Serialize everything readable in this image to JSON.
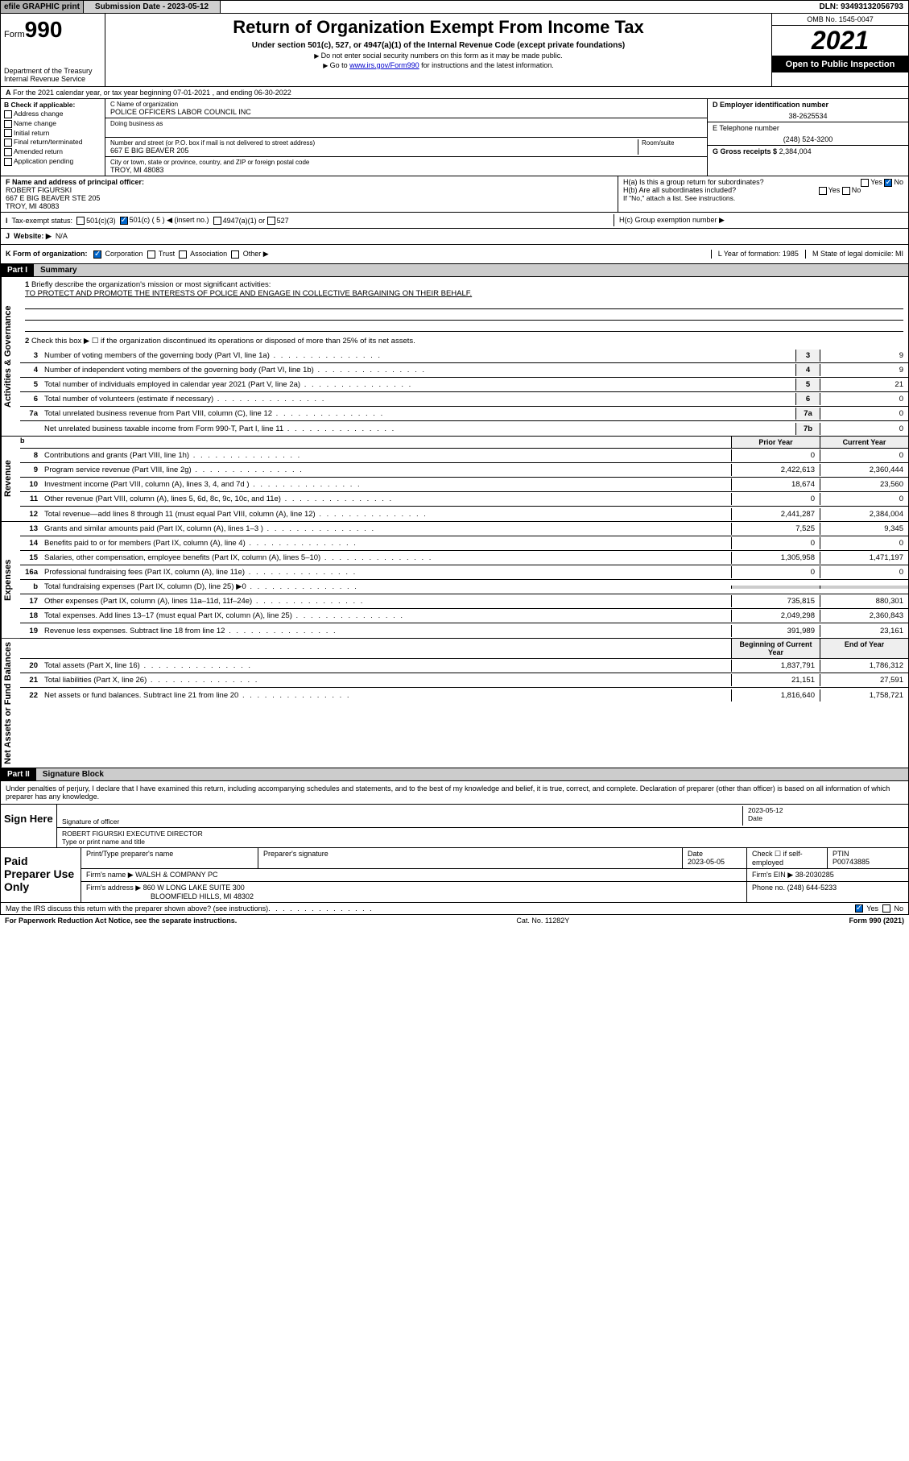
{
  "topbar": {
    "efile": "efile GRAPHIC print",
    "submission_lbl": "Submission Date - 2023-05-12",
    "dln_lbl": "DLN: 93493132056793"
  },
  "header": {
    "form": "Form",
    "form_num": "990",
    "dept": "Department of the Treasury",
    "irs": "Internal Revenue Service",
    "title": "Return of Organization Exempt From Income Tax",
    "subtitle": "Under section 501(c), 527, or 4947(a)(1) of the Internal Revenue Code (except private foundations)",
    "note1": "Do not enter social security numbers on this form as it may be made public.",
    "note2_pre": "Go to ",
    "note2_link": "www.irs.gov/Form990",
    "note2_post": " for instructions and the latest information.",
    "omb": "OMB No. 1545-0047",
    "year": "2021",
    "open": "Open to Public Inspection"
  },
  "rowA": "For the 2021 calendar year, or tax year beginning 07-01-2021   , and ending 06-30-2022",
  "boxB": {
    "title": "B Check if applicable:",
    "opts": [
      "Address change",
      "Name change",
      "Initial return",
      "Final return/terminated",
      "Amended return",
      "Application pending"
    ]
  },
  "boxC": {
    "lbl": "C Name of organization",
    "name": "POLICE OFFICERS LABOR COUNCIL INC",
    "dba_lbl": "Doing business as",
    "addr_lbl": "Number and street (or P.O. box if mail is not delivered to street address)",
    "room_lbl": "Room/suite",
    "addr": "667 E BIG BEAVER 205",
    "city_lbl": "City or town, state or province, country, and ZIP or foreign postal code",
    "city": "TROY, MI  48083"
  },
  "boxD": {
    "lbl": "D Employer identification number",
    "val": "38-2625534"
  },
  "boxE": {
    "lbl": "E Telephone number",
    "val": "(248) 524-3200"
  },
  "boxG": {
    "lbl": "G Gross receipts $",
    "val": "2,384,004"
  },
  "boxF": {
    "lbl": "F  Name and address of principal officer:",
    "name": "ROBERT FIGURSKI",
    "addr1": "667 E BIG BEAVER STE 205",
    "addr2": "TROY, MI  48083"
  },
  "boxH": {
    "a": "H(a)  Is this a group return for subordinates?",
    "b": "H(b)  Are all subordinates included?",
    "b_note": "If \"No,\" attach a list. See instructions.",
    "c": "H(c)  Group exemption number ▶",
    "yes": "Yes",
    "no": "No"
  },
  "rowI": {
    "lbl": "Tax-exempt status:",
    "c3": "501(c)(3)",
    "c5": "501(c) ( 5 ) ◀ (insert no.)",
    "a1": "4947(a)(1) or",
    "s527": "527"
  },
  "rowJ": {
    "lbl": "Website: ▶",
    "val": "N/A"
  },
  "rowK": {
    "lbl": "K Form of organization:",
    "opts": [
      "Corporation",
      "Trust",
      "Association",
      "Other ▶"
    ],
    "L": "L Year of formation: 1985",
    "M": "M State of legal domicile: MI"
  },
  "part1": {
    "hdr": "Part I",
    "title": "Summary",
    "q1": "Briefly describe the organization's mission or most significant activities:",
    "mission": "TO PROTECT AND PROMOTE THE INTERESTS OF POLICE AND ENGAGE IN COLLECTIVE BARGAINING ON THEIR BEHALF.",
    "q2": "Check this box ▶ ☐  if the organization discontinued its operations or disposed of more than 25% of its net assets."
  },
  "gov_label": "Activities & Governance",
  "rev_label": "Revenue",
  "exp_label": "Expenses",
  "net_label": "Net Assets or Fund Balances",
  "gov_lines": [
    {
      "n": "3",
      "t": "Number of voting members of the governing body (Part VI, line 1a)",
      "box": "3",
      "v": "9"
    },
    {
      "n": "4",
      "t": "Number of independent voting members of the governing body (Part VI, line 1b)",
      "box": "4",
      "v": "9"
    },
    {
      "n": "5",
      "t": "Total number of individuals employed in calendar year 2021 (Part V, line 2a)",
      "box": "5",
      "v": "21"
    },
    {
      "n": "6",
      "t": "Total number of volunteers (estimate if necessary)",
      "box": "6",
      "v": "0"
    },
    {
      "n": "7a",
      "t": "Total unrelated business revenue from Part VIII, column (C), line 12",
      "box": "7a",
      "v": "0"
    },
    {
      "n": "",
      "t": "Net unrelated business taxable income from Form 990-T, Part I, line 11",
      "box": "7b",
      "v": "0"
    }
  ],
  "col_hdr": {
    "prior": "Prior Year",
    "current": "Current Year"
  },
  "rev_lines": [
    {
      "n": "8",
      "t": "Contributions and grants (Part VIII, line 1h)",
      "p": "0",
      "c": "0"
    },
    {
      "n": "9",
      "t": "Program service revenue (Part VIII, line 2g)",
      "p": "2,422,613",
      "c": "2,360,444"
    },
    {
      "n": "10",
      "t": "Investment income (Part VIII, column (A), lines 3, 4, and 7d )",
      "p": "18,674",
      "c": "23,560"
    },
    {
      "n": "11",
      "t": "Other revenue (Part VIII, column (A), lines 5, 6d, 8c, 9c, 10c, and 11e)",
      "p": "0",
      "c": "0"
    },
    {
      "n": "12",
      "t": "Total revenue—add lines 8 through 11 (must equal Part VIII, column (A), line 12)",
      "p": "2,441,287",
      "c": "2,384,004"
    }
  ],
  "exp_lines": [
    {
      "n": "13",
      "t": "Grants and similar amounts paid (Part IX, column (A), lines 1–3 )",
      "p": "7,525",
      "c": "9,345"
    },
    {
      "n": "14",
      "t": "Benefits paid to or for members (Part IX, column (A), line 4)",
      "p": "0",
      "c": "0"
    },
    {
      "n": "15",
      "t": "Salaries, other compensation, employee benefits (Part IX, column (A), lines 5–10)",
      "p": "1,305,958",
      "c": "1,471,197"
    },
    {
      "n": "16a",
      "t": "Professional fundraising fees (Part IX, column (A), line 11e)",
      "p": "0",
      "c": "0"
    },
    {
      "n": "b",
      "t": "Total fundraising expenses (Part IX, column (D), line 25) ▶0",
      "p": "",
      "c": ""
    },
    {
      "n": "17",
      "t": "Other expenses (Part IX, column (A), lines 11a–11d, 11f–24e)",
      "p": "735,815",
      "c": "880,301"
    },
    {
      "n": "18",
      "t": "Total expenses. Add lines 13–17 (must equal Part IX, column (A), line 25)",
      "p": "2,049,298",
      "c": "2,360,843"
    },
    {
      "n": "19",
      "t": "Revenue less expenses. Subtract line 18 from line 12",
      "p": "391,989",
      "c": "23,161"
    }
  ],
  "net_hdr": {
    "beg": "Beginning of Current Year",
    "end": "End of Year"
  },
  "net_lines": [
    {
      "n": "20",
      "t": "Total assets (Part X, line 16)",
      "p": "1,837,791",
      "c": "1,786,312"
    },
    {
      "n": "21",
      "t": "Total liabilities (Part X, line 26)",
      "p": "21,151",
      "c": "27,591"
    },
    {
      "n": "22",
      "t": "Net assets or fund balances. Subtract line 21 from line 20",
      "p": "1,816,640",
      "c": "1,758,721"
    }
  ],
  "part2": {
    "hdr": "Part II",
    "title": "Signature Block",
    "decl": "Under penalties of perjury, I declare that I have examined this return, including accompanying schedules and statements, and to the best of my knowledge and belief, it is true, correct, and complete. Declaration of preparer (other than officer) is based on all information of which preparer has any knowledge."
  },
  "sign": {
    "lbl": "Sign Here",
    "sig_lbl": "Signature of officer",
    "date_lbl": "Date",
    "date": "2023-05-12",
    "name": "ROBERT FIGURSKI  EXECUTIVE DIRECTOR",
    "name_lbl": "Type or print name and title"
  },
  "prep": {
    "lbl": "Paid Preparer Use Only",
    "h1": "Print/Type preparer's name",
    "h2": "Preparer's signature",
    "h3": "Date",
    "h3v": "2023-05-05",
    "h4": "Check ☐ if self-employed",
    "h5": "PTIN",
    "h5v": "P00743885",
    "firm_lbl": "Firm's name   ▶",
    "firm": "WALSH & COMPANY PC",
    "ein_lbl": "Firm's EIN ▶",
    "ein": "38-2030285",
    "addr_lbl": "Firm's address ▶",
    "addr": "860 W LONG LAKE SUITE 300",
    "addr2": "BLOOMFIELD HILLS, MI  48302",
    "ph_lbl": "Phone no.",
    "ph": "(248) 644-5233"
  },
  "footer_q": "May the IRS discuss this return with the preparer shown above? (see instructions)",
  "footer_yes": "Yes",
  "footer_no": "No",
  "bottom": {
    "l": "For Paperwork Reduction Act Notice, see the separate instructions.",
    "m": "Cat. No. 11282Y",
    "r": "Form 990 (2021)"
  }
}
